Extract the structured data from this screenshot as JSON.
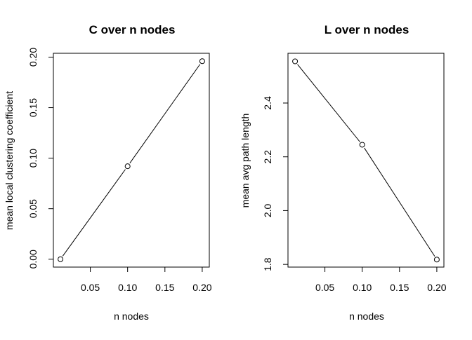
{
  "chart_data": [
    {
      "type": "line",
      "title": "C over n nodes",
      "xlabel": "n nodes",
      "ylabel": "mean local clustering coefficient",
      "x": [
        0.01,
        0.1,
        0.2
      ],
      "series": [
        {
          "values": [
            0.0,
            0.092,
            0.196
          ]
        }
      ],
      "xlim": [
        0.0005,
        0.2095
      ],
      "ylim": [
        -0.0078,
        0.2038
      ],
      "xticks": [
        "0.05",
        "0.10",
        "0.15",
        "0.20"
      ],
      "xtick_values": [
        0.05,
        0.1,
        0.15,
        0.2
      ],
      "yticks": [
        "0.00",
        "0.05",
        "0.10",
        "0.15",
        "0.20"
      ],
      "ytick_values": [
        0.0,
        0.05,
        0.1,
        0.15,
        0.2
      ],
      "grid": false,
      "marker": "open-circle",
      "line_color": "#000000"
    },
    {
      "type": "line",
      "title": "L over n nodes",
      "xlabel": "n nodes",
      "ylabel": "mean avg path length",
      "x": [
        0.01,
        0.1,
        0.2
      ],
      "series": [
        {
          "values": [
            2.555,
            2.245,
            1.818
          ]
        }
      ],
      "xlim": [
        0.0005,
        0.2095
      ],
      "ylim": [
        1.79,
        2.585
      ],
      "xticks": [
        "0.05",
        "0.10",
        "0.15",
        "0.20"
      ],
      "xtick_values": [
        0.05,
        0.1,
        0.15,
        0.2
      ],
      "yticks": [
        "1.8",
        "2.0",
        "2.2",
        "2.4"
      ],
      "ytick_values": [
        1.8,
        2.0,
        2.2,
        2.4
      ],
      "grid": false,
      "marker": "open-circle",
      "line_color": "#000000"
    }
  ]
}
